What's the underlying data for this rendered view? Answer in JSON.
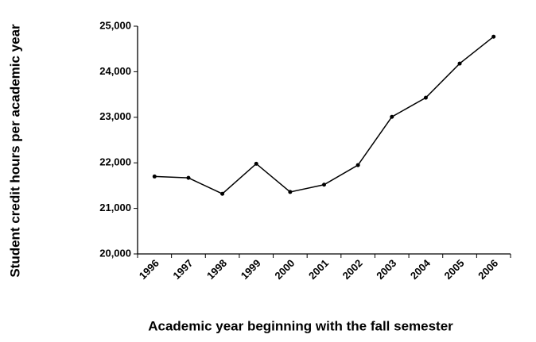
{
  "chart_data": {
    "type": "line",
    "x_label": "Academic year beginning with the fall semester",
    "y_label": "Student credit hours per academic year",
    "categories": [
      "1996",
      "1997",
      "1998",
      "1999",
      "2000",
      "2001",
      "2002",
      "2003",
      "2004",
      "2005",
      "2006"
    ],
    "values": [
      21700,
      21670,
      21320,
      21980,
      21360,
      21520,
      21950,
      23010,
      23430,
      24180,
      24770
    ],
    "color": "#000000",
    "ylim": [
      20000,
      25000
    ],
    "yticks": [
      {
        "value": 20000,
        "label": "20,000"
      },
      {
        "value": 21000,
        "label": "21,000"
      },
      {
        "value": 22000,
        "label": "22,000"
      },
      {
        "value": 23000,
        "label": "23,000"
      },
      {
        "value": 24000,
        "label": "24,000"
      },
      {
        "value": 25000,
        "label": "25,000"
      }
    ],
    "grid": false
  }
}
